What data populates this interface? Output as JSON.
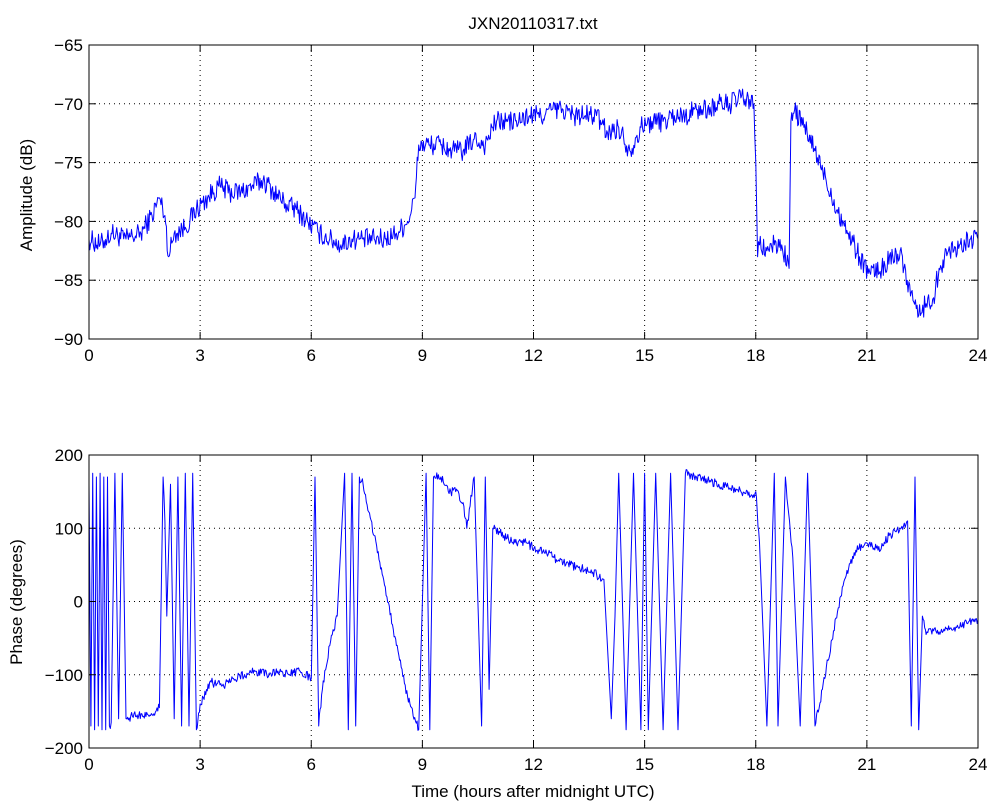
{
  "chart_data": [
    {
      "type": "line",
      "title": "JXN20110317.txt",
      "xlabel": "",
      "ylabel": "Amplitude (dB)",
      "xlim": [
        0,
        24
      ],
      "ylim": [
        -90,
        -65
      ],
      "grid": true,
      "xticks": [
        "0",
        "3",
        "6",
        "9",
        "12",
        "15",
        "18",
        "21",
        "24"
      ],
      "yticks": [
        "-90",
        "-85",
        "-80",
        "-75",
        "-70",
        "-65"
      ],
      "color": "#0000ff",
      "series": [
        {
          "x": [
            0,
            0.3,
            0.6,
            1.0,
            1.4,
            1.7,
            1.9,
            2.05,
            2.15,
            2.3,
            2.6,
            2.9,
            3.2,
            3.5,
            3.8,
            4.1,
            4.4,
            4.7,
            5.0,
            5.3,
            5.6,
            5.9,
            6.2,
            6.5,
            6.8,
            7.1,
            7.4,
            7.7,
            8.0,
            8.3,
            8.6,
            8.8,
            8.9,
            9.2,
            9.5,
            9.8,
            10.1,
            10.4,
            10.7,
            10.9,
            11.0,
            11.3,
            11.6,
            11.9,
            12.2,
            12.5,
            12.8,
            13.1,
            13.4,
            13.7,
            14.0,
            14.3,
            14.6,
            14.9,
            15.2,
            15.5,
            15.8,
            16.1,
            16.4,
            16.7,
            17.0,
            17.3,
            17.6,
            17.95,
            18.0,
            18.05,
            18.1,
            18.3,
            18.5,
            18.7,
            18.9,
            18.95,
            19.05,
            19.3,
            19.6,
            19.9,
            20.2,
            20.5,
            20.8,
            21.1,
            21.4,
            21.7,
            21.9,
            22.0,
            22.2,
            22.4,
            22.6,
            22.8,
            22.95,
            23.2,
            23.5,
            23.8,
            24.0
          ],
          "y": [
            -81.5,
            -82.0,
            -81.0,
            -81.5,
            -81.0,
            -79.5,
            -78.0,
            -79.5,
            -83.0,
            -81.0,
            -80.5,
            -79.0,
            -78.0,
            -77.0,
            -77.5,
            -77.5,
            -77.0,
            -76.5,
            -77.5,
            -78.5,
            -79.0,
            -80.0,
            -81.0,
            -81.5,
            -82.0,
            -81.5,
            -81.5,
            -81.5,
            -81.5,
            -81.0,
            -80.0,
            -78.0,
            -73.5,
            -73.5,
            -73.5,
            -74.0,
            -74.0,
            -73.0,
            -73.5,
            -72.0,
            -71.5,
            -71.5,
            -71.5,
            -71.0,
            -71.0,
            -70.5,
            -70.5,
            -71.0,
            -71.0,
            -71.0,
            -72.5,
            -72.0,
            -74.0,
            -72.0,
            -71.5,
            -71.5,
            -71.0,
            -71.0,
            -70.5,
            -70.5,
            -70.0,
            -70.0,
            -69.5,
            -70.0,
            -75.0,
            -83.0,
            -82.0,
            -82.5,
            -82.0,
            -82.0,
            -84.0,
            -71.5,
            -70.5,
            -72.0,
            -74.0,
            -76.5,
            -79.0,
            -81.0,
            -83.0,
            -84.5,
            -84.0,
            -83.0,
            -82.5,
            -84.0,
            -86.0,
            -88.0,
            -87.0,
            -86.5,
            -84.0,
            -82.5,
            -82.0,
            -81.5,
            -81.5
          ]
        }
      ]
    },
    {
      "type": "line",
      "title": "",
      "xlabel": "Time (hours after midnight UTC)",
      "ylabel": "Phase (degrees)",
      "xlim": [
        0,
        24
      ],
      "ylim": [
        -200,
        200
      ],
      "grid": true,
      "xticks": [
        "0",
        "3",
        "6",
        "9",
        "12",
        "15",
        "18",
        "21",
        "24"
      ],
      "yticks": [
        "-200",
        "-100",
        "0",
        "100",
        "200"
      ],
      "color": "#0000ff",
      "series": [
        {
          "x": [
            0,
            0.05,
            0.1,
            0.15,
            0.2,
            0.25,
            0.3,
            0.35,
            0.4,
            0.45,
            0.5,
            0.55,
            0.6,
            0.7,
            0.8,
            0.9,
            1.0,
            1.3,
            1.6,
            1.9,
            2.0,
            2.05,
            2.1,
            2.2,
            2.3,
            2.4,
            2.5,
            2.6,
            2.7,
            2.8,
            2.9,
            3.0,
            3.3,
            3.6,
            3.9,
            4.2,
            4.5,
            4.8,
            5.1,
            5.4,
            5.7,
            6.0,
            6.1,
            6.2,
            6.3,
            6.5,
            6.7,
            6.9,
            7.0,
            7.1,
            7.2,
            7.3,
            7.4,
            7.7,
            8.0,
            8.3,
            8.6,
            8.9,
            9.1,
            9.2,
            9.3,
            9.5,
            9.7,
            9.9,
            10.1,
            10.2,
            10.4,
            10.6,
            10.7,
            10.8,
            10.9,
            11.2,
            11.5,
            11.8,
            12.1,
            12.4,
            12.7,
            13.0,
            13.3,
            13.6,
            13.9,
            14.1,
            14.2,
            14.3,
            14.5,
            14.7,
            14.9,
            15.0,
            15.1,
            15.3,
            15.5,
            15.7,
            15.9,
            16.1,
            16.4,
            16.7,
            17.0,
            17.3,
            17.6,
            17.9,
            18.0,
            18.1,
            18.3,
            18.5,
            18.6,
            18.8,
            19.0,
            19.2,
            19.4,
            19.6,
            19.8,
            20.1,
            20.4,
            20.7,
            21.0,
            21.3,
            21.6,
            21.9,
            22.1,
            22.2,
            22.3,
            22.4,
            22.5,
            22.6,
            22.8,
            23.1,
            23.4,
            23.7,
            24.0
          ],
          "y": [
            160,
            -170,
            175,
            -175,
            170,
            -170,
            175,
            -175,
            170,
            -175,
            170,
            -170,
            -165,
            175,
            -160,
            175,
            -160,
            -155,
            -155,
            -145,
            170,
            110,
            -20,
            160,
            -160,
            170,
            -170,
            175,
            -170,
            175,
            -175,
            -140,
            -110,
            -115,
            -105,
            -100,
            -95,
            -100,
            -95,
            -100,
            -95,
            -105,
            170,
            -170,
            -120,
            -60,
            -20,
            175,
            -175,
            175,
            -170,
            170,
            160,
            90,
            20,
            -60,
            -130,
            -175,
            175,
            -175,
            170,
            170,
            150,
            150,
            135,
            100,
            170,
            -170,
            170,
            -120,
            100,
            90,
            80,
            80,
            70,
            65,
            55,
            50,
            45,
            40,
            30,
            -160,
            -20,
            175,
            -175,
            175,
            -175,
            175,
            -175,
            175,
            -175,
            175,
            -175,
            175,
            170,
            165,
            160,
            155,
            150,
            145,
            150,
            80,
            -170,
            175,
            -170,
            170,
            60,
            -170,
            175,
            -170,
            -120,
            -40,
            30,
            70,
            80,
            70,
            90,
            100,
            110,
            -170,
            170,
            -175,
            -20,
            -45,
            -40,
            -40,
            -35,
            -30,
            -25
          ]
        }
      ]
    }
  ]
}
